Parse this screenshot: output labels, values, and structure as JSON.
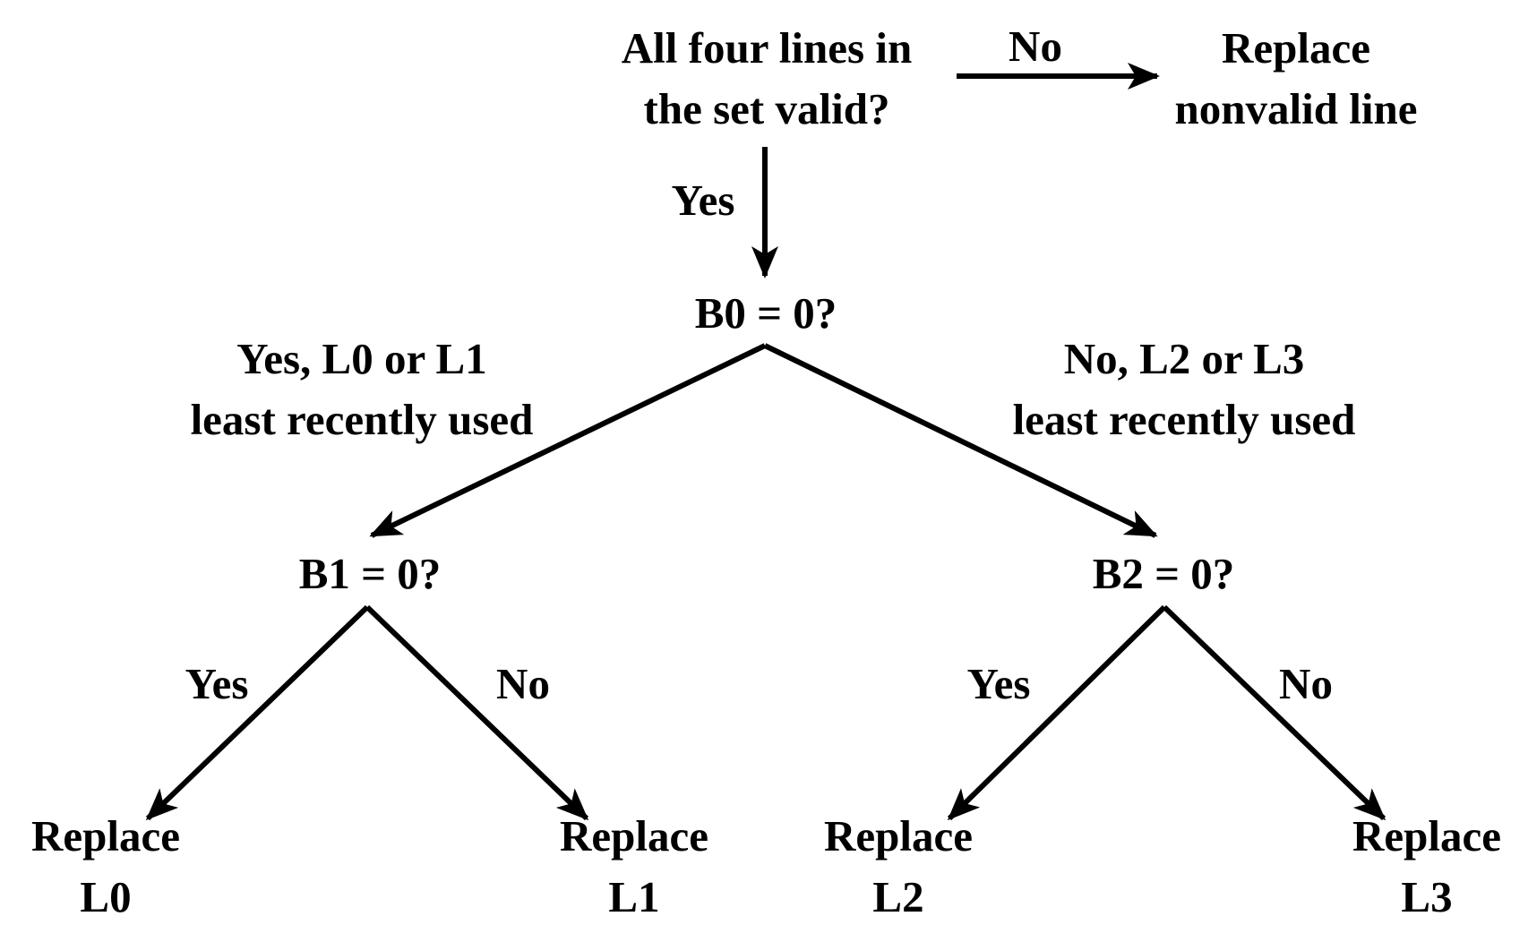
{
  "colors": {
    "ink": "#000000",
    "background": "#ffffff"
  },
  "nodes": {
    "root": {
      "line1": "All four lines in",
      "line2": "the set valid?"
    },
    "replace_nonvalid": {
      "line1": "Replace",
      "line2": "nonvalid line"
    },
    "b0": {
      "text": "B0 = 0?"
    },
    "b1": {
      "text": "B1 = 0?"
    },
    "b2": {
      "text": "B2 = 0?"
    },
    "leaf_l0": {
      "line1": "Replace",
      "line2": "L0"
    },
    "leaf_l1": {
      "line1": "Replace",
      "line2": "L1"
    },
    "leaf_l2": {
      "line1": "Replace",
      "line2": "L2"
    },
    "leaf_l3": {
      "line1": "Replace",
      "line2": "L3"
    }
  },
  "edges": {
    "root_no": "No",
    "root_yes": "Yes",
    "b0_yes": {
      "line1": "Yes, L0 or L1",
      "line2": "least recently used"
    },
    "b0_no": {
      "line1": "No, L2 or L3",
      "line2": "least recently used"
    },
    "b1_yes": "Yes",
    "b1_no": "No",
    "b2_yes": "Yes",
    "b2_no": "No"
  }
}
